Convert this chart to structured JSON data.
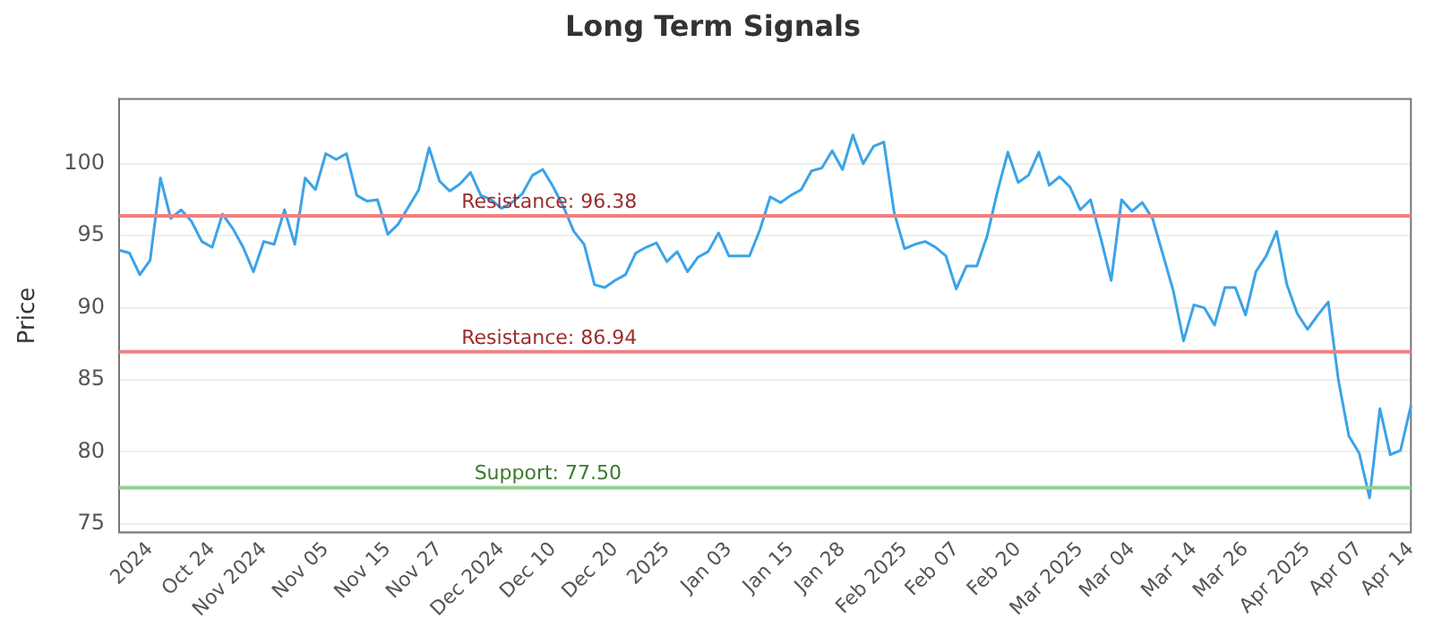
{
  "chart_data": {
    "type": "line",
    "title": "Long Term Signals",
    "ylabel": "Price",
    "categories": [
      null,
      null,
      null,
      "2024",
      null,
      null,
      null,
      null,
      null,
      "Oct 24",
      null,
      null,
      null,
      null,
      "Nov 2024",
      null,
      null,
      null,
      null,
      null,
      "Nov 05",
      null,
      null,
      null,
      null,
      null,
      "Nov 15",
      null,
      null,
      null,
      null,
      "Nov 27",
      null,
      null,
      null,
      null,
      null,
      "Dec 2024",
      null,
      null,
      null,
      null,
      "Dec 10",
      null,
      null,
      null,
      null,
      null,
      "Dec 20",
      null,
      null,
      null,
      null,
      "2025",
      null,
      null,
      null,
      null,
      null,
      "Jan 03",
      null,
      null,
      null,
      null,
      null,
      "Jan 15",
      null,
      null,
      null,
      null,
      "Jan 28",
      null,
      null,
      null,
      null,
      null,
      "Feb 2025",
      null,
      null,
      null,
      null,
      "Feb 07",
      null,
      null,
      null,
      null,
      null,
      "Feb 20",
      null,
      null,
      null,
      null,
      null,
      "Mar 2025",
      null,
      null,
      null,
      null,
      "Mar 04",
      null,
      null,
      null,
      null,
      null,
      "Mar 14",
      null,
      null,
      null,
      null,
      "Mar 26",
      null,
      null,
      null,
      null,
      null,
      "Apr 2025",
      null,
      null,
      null,
      null,
      "Apr 07",
      null,
      null,
      null,
      null,
      "Apr 14"
    ],
    "series": [
      {
        "color": "#3ba3e8",
        "values": [
          94.0,
          93.8,
          92.3,
          93.3,
          99.0,
          96.2,
          96.8,
          96.0,
          94.6,
          94.2,
          96.5,
          95.5,
          94.2,
          92.5,
          94.6,
          94.4,
          96.8,
          94.4,
          99.0,
          98.2,
          100.7,
          100.3,
          100.7,
          97.8,
          97.4,
          97.5,
          95.1,
          95.8,
          97.0,
          98.2,
          101.1,
          98.8,
          98.1,
          98.6,
          99.4,
          97.8,
          97.5,
          96.9,
          97.3,
          97.9,
          99.2,
          99.6,
          98.4,
          97.0,
          95.3,
          94.4,
          91.6,
          91.4,
          91.9,
          92.3,
          93.8,
          94.2,
          94.5,
          93.2,
          93.9,
          92.5,
          93.5,
          93.9,
          95.2,
          93.6,
          93.6,
          93.6,
          95.4,
          97.7,
          97.3,
          97.8,
          98.2,
          99.5,
          99.7,
          100.9,
          99.6,
          102.0,
          100.0,
          101.2,
          101.5,
          96.6,
          94.1,
          94.4,
          94.6,
          94.2,
          93.6,
          91.3,
          92.9,
          92.9,
          95.0,
          98.1,
          100.8,
          98.7,
          99.2,
          100.8,
          98.5,
          99.1,
          98.4,
          96.8,
          97.5,
          94.8,
          91.9,
          97.5,
          96.7,
          97.3,
          96.2,
          93.7,
          91.2,
          87.7,
          90.2,
          90.0,
          88.8,
          91.4,
          91.4,
          89.5,
          92.5,
          93.6,
          95.3,
          91.6,
          89.6,
          88.5,
          89.5,
          90.4,
          84.9,
          81.1,
          79.9,
          76.8,
          83.0,
          79.8,
          80.1,
          83.2
        ]
      }
    ],
    "ylim": [
      74.4,
      104.5
    ],
    "yticks": [
      75,
      80,
      85,
      90,
      95,
      100
    ],
    "ref_lines": [
      {
        "axis": "y",
        "value": 96.38,
        "label": "Resistance: 96.38",
        "color": "#f08080"
      },
      {
        "axis": "y",
        "value": 86.94,
        "label": "Resistance: 86.94",
        "color": "#f08080"
      },
      {
        "axis": "y",
        "value": 77.5,
        "label": "Support: 77.50",
        "color": "#90d090"
      }
    ],
    "grid": "y",
    "legend": false,
    "marker": "none",
    "line_style": "solid"
  }
}
